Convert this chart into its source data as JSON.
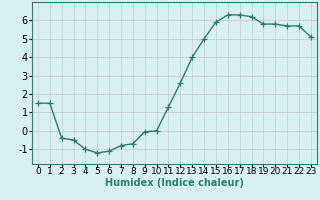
{
  "x": [
    0,
    1,
    2,
    3,
    4,
    5,
    6,
    7,
    8,
    9,
    10,
    11,
    12,
    13,
    14,
    15,
    16,
    17,
    18,
    19,
    20,
    21,
    22,
    23
  ],
  "y": [
    1.5,
    1.5,
    -0.4,
    -0.5,
    -1.0,
    -1.2,
    -1.1,
    -0.8,
    -0.7,
    -0.05,
    0.0,
    1.3,
    2.6,
    4.0,
    5.0,
    5.9,
    6.3,
    6.3,
    6.2,
    5.8,
    5.8,
    5.7,
    5.7,
    5.1
  ],
  "line_color": "#2d7d6d",
  "marker": "+",
  "markersize": 4,
  "linewidth": 1.0,
  "xlabel": "Humidex (Indice chaleur)",
  "xlabel_fontsize": 7,
  "ylim": [
    -1.8,
    7.0
  ],
  "xlim": [
    -0.5,
    23.5
  ],
  "yticks": [
    -1,
    0,
    1,
    2,
    3,
    4,
    5,
    6
  ],
  "xticks": [
    0,
    1,
    2,
    3,
    4,
    5,
    6,
    7,
    8,
    9,
    10,
    11,
    12,
    13,
    14,
    15,
    16,
    17,
    18,
    19,
    20,
    21,
    22,
    23
  ],
  "grid_color": "#c8c8d0",
  "grid_alpha": 1.0,
  "background_color": "#d8f0f0",
  "tick_fontsize": 6.5,
  "ytick_fontsize": 7
}
